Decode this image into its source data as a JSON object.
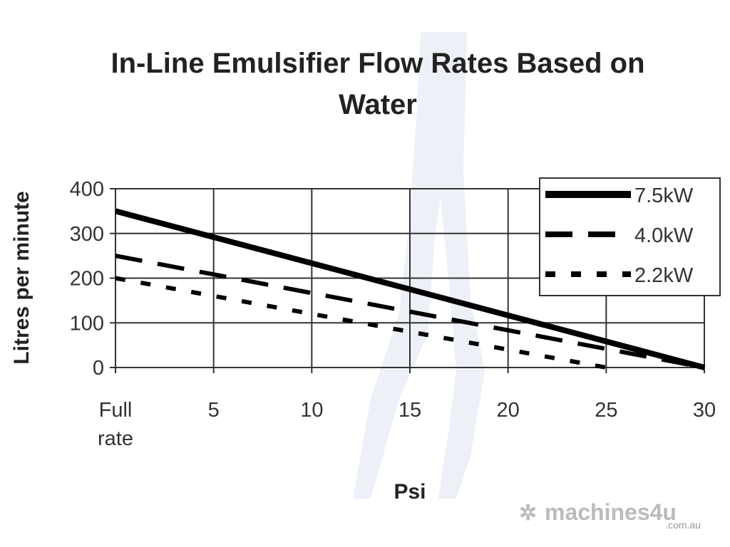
{
  "chart_data": {
    "type": "line",
    "title": [
      "In-Line Emulsifier Flow Rates Based on",
      "Water"
    ],
    "xlabel": "Psi",
    "ylabel": "Litres per minute",
    "xlim": [
      0,
      30
    ],
    "ylim": [
      0,
      400
    ],
    "x_ticks": [
      {
        "value": 0,
        "label": [
          "Full",
          "rate"
        ]
      },
      {
        "value": 5,
        "label": [
          "5"
        ]
      },
      {
        "value": 10,
        "label": [
          "10"
        ]
      },
      {
        "value": 15,
        "label": [
          "15"
        ]
      },
      {
        "value": 20,
        "label": [
          "20"
        ]
      },
      {
        "value": 25,
        "label": [
          "25"
        ]
      },
      {
        "value": 30,
        "label": [
          "30"
        ]
      }
    ],
    "y_ticks": [
      0,
      100,
      200,
      300,
      400
    ],
    "grid": true,
    "legend_position": "top-right",
    "series": [
      {
        "name": "7.5kW",
        "style": "solid",
        "x": [
          0,
          30
        ],
        "y": [
          350,
          0
        ]
      },
      {
        "name": "4.0kW",
        "style": "dashed",
        "x": [
          0,
          30
        ],
        "y": [
          250,
          0
        ]
      },
      {
        "name": "2.2kW",
        "style": "dotted",
        "x": [
          0,
          25
        ],
        "y": [
          200,
          0
        ]
      }
    ]
  },
  "watermark": {
    "brand": "machines4u",
    "domain": ".com.au"
  }
}
